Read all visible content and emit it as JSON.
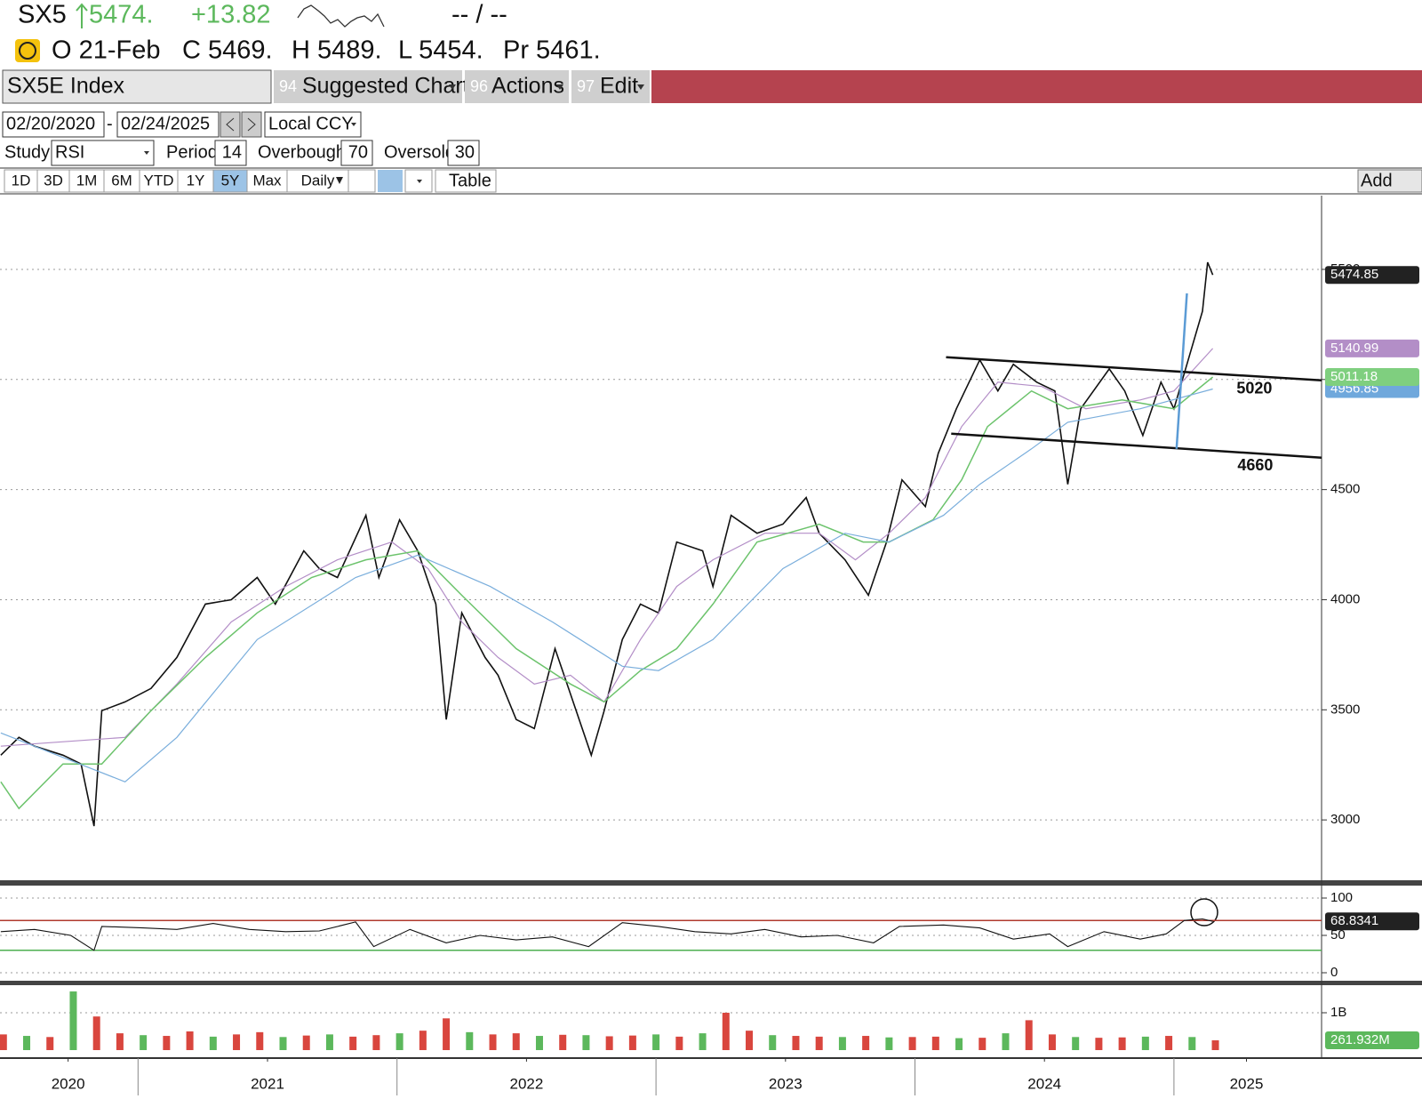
{
  "header": {
    "ticker": "SX5",
    "last": "5474.",
    "change": "+13.82",
    "updated": "-- / --",
    "open_date": "O 21-Feb",
    "close": "C 5469.",
    "high": "H 5489.",
    "low": "L 5454.",
    "prev": "Pr 5461."
  },
  "toolbar": {
    "security": "SX5E Index",
    "menus": [
      {
        "num": "94",
        "label": "Suggested Charts"
      },
      {
        "num": "96",
        "label": "Actions"
      },
      {
        "num": "97",
        "label": "Edit"
      }
    ]
  },
  "range": {
    "start": "02/20/2020",
    "separator": "-",
    "end": "02/24/2025",
    "currency": "Local CCY"
  },
  "study": {
    "label": "Study",
    "name": "RSI",
    "period_label": "Period",
    "period": 14,
    "overbought_label": "Overbought",
    "overbought": 70,
    "oversold_label": "Oversold",
    "oversold": 30
  },
  "periods": [
    "1D",
    "3D",
    "1M",
    "6M",
    "YTD",
    "1Y",
    "5Y",
    "Max",
    "Daily"
  ],
  "active_period": 6,
  "table": "Table",
  "add": "Add",
  "chart_data": [
    {
      "type": "line",
      "xlim": [
        2020.467,
        2025.57
      ],
      "ylim": [
        2726,
        5835
      ],
      "yticks": [
        3000,
        3500,
        4000,
        4500,
        5000,
        5500
      ],
      "grid": true,
      "series": [
        {
          "color": "#111111",
          "badge_color": "#222222",
          "width": 1.6,
          "x": [
            2020.47,
            2020.54,
            2020.6,
            2020.71,
            2020.78,
            2020.83,
            2020.86,
            2020.95,
            2021.05,
            2021.15,
            2021.26,
            2021.36,
            2021.46,
            2021.53,
            2021.64,
            2021.7,
            2021.77,
            2021.88,
            2021.93,
            2022.01,
            2022.08,
            2022.15,
            2022.19,
            2022.25,
            2022.34,
            2022.39,
            2022.46,
            2022.53,
            2022.61,
            2022.68,
            2022.75,
            2022.8,
            2022.87,
            2022.94,
            2023.01,
            2023.08,
            2023.18,
            2023.22,
            2023.29,
            2023.39,
            2023.49,
            2023.58,
            2023.63,
            2023.73,
            2023.82,
            2023.89,
            2023.95,
            2024.04,
            2024.09,
            2024.16,
            2024.25,
            2024.32,
            2024.38,
            2024.47,
            2024.54,
            2024.59,
            2024.64,
            2024.75,
            2024.81,
            2024.88,
            2024.95,
            2025.0,
            2025.06,
            2025.11,
            2025.13,
            2025.15
          ],
          "values": [
            3294,
            3375,
            3335,
            3294,
            3254,
            2972,
            3496,
            3536,
            3597,
            3738,
            3980,
            4000,
            4101,
            3980,
            4222,
            4141,
            4101,
            4383,
            4101,
            4363,
            4222,
            3980,
            3456,
            3940,
            3738,
            3657,
            3456,
            3415,
            3778,
            3536,
            3294,
            3496,
            3819,
            3980,
            3940,
            4262,
            4222,
            4060,
            4383,
            4302,
            4343,
            4464,
            4302,
            4181,
            4020,
            4262,
            4544,
            4423,
            4665,
            4867,
            5089,
            4948,
            5069,
            4988,
            4948,
            4524,
            4867,
            5048,
            4948,
            4746,
            4988,
            4867,
            5109,
            5310,
            5532,
            5474.85
          ]
        },
        {
          "color": "#b38ec7",
          "badge_color": "#b38ec7",
          "width": 1.2,
          "x": [
            2020.47,
            2020.95,
            2021.15,
            2021.36,
            2021.57,
            2021.77,
            2021.98,
            2022.12,
            2022.25,
            2022.39,
            2022.53,
            2022.67,
            2022.8,
            2022.94,
            2023.08,
            2023.22,
            2023.42,
            2023.63,
            2023.77,
            2023.9,
            2024.04,
            2024.18,
            2024.32,
            2024.49,
            2024.66,
            2024.87,
            2025.0,
            2025.15
          ],
          "values": [
            3335,
            3375,
            3617,
            3899,
            4060,
            4181,
            4262,
            4141,
            3899,
            3738,
            3617,
            3657,
            3536,
            3819,
            4060,
            4181,
            4302,
            4302,
            4181,
            4302,
            4464,
            4786,
            4988,
            4968,
            4867,
            4907,
            4948,
            5140.99
          ]
        },
        {
          "color": "#6cc36c",
          "badge_color": "#7fcf7f",
          "width": 1.5,
          "x": [
            2020.47,
            2020.54,
            2020.71,
            2020.86,
            2021.05,
            2021.26,
            2021.46,
            2021.67,
            2021.88,
            2022.08,
            2022.25,
            2022.46,
            2022.67,
            2022.8,
            2022.94,
            2023.08,
            2023.22,
            2023.39,
            2023.63,
            2023.8,
            2023.9,
            2024.07,
            2024.18,
            2024.28,
            2024.45,
            2024.59,
            2024.8,
            2025.0,
            2025.15
          ],
          "values": [
            3173,
            3052,
            3254,
            3254,
            3496,
            3738,
            3940,
            4101,
            4181,
            4222,
            4020,
            3778,
            3617,
            3536,
            3678,
            3778,
            3980,
            4262,
            4343,
            4262,
            4262,
            4363,
            4544,
            4786,
            4948,
            4867,
            4907,
            4867,
            5011.18
          ]
        },
        {
          "color": "#7aaedc",
          "badge_color": "#6fa8dc",
          "width": 1.2,
          "x": [
            2020.47,
            2020.95,
            2021.15,
            2021.46,
            2021.84,
            2022.08,
            2022.36,
            2022.6,
            2022.87,
            2023.01,
            2023.22,
            2023.49,
            2023.73,
            2023.9,
            2024.11,
            2024.25,
            2024.45,
            2024.59,
            2024.87,
            2025.15
          ],
          "values": [
            3395,
            3173,
            3375,
            3819,
            4101,
            4202,
            4060,
            3899,
            3698,
            3678,
            3819,
            4141,
            4302,
            4262,
            4383,
            4524,
            4685,
            4806,
            4867,
            4956.85
          ]
        }
      ],
      "lines": [
        {
          "x": [
            2024.12,
            2025.57
          ],
          "y": [
            5101,
            4996
          ],
          "color": "#111111",
          "label": "5020"
        },
        {
          "x": [
            2024.14,
            2025.57
          ],
          "y": [
            4754,
            4645
          ],
          "color": "#111111",
          "label": "4660"
        },
        {
          "x": [
            2025.01,
            2025.05
          ],
          "y": [
            4685,
            5391
          ],
          "color": "#5b9bd5"
        }
      ]
    },
    {
      "type": "line",
      "xlim": [
        2020.467,
        2025.57
      ],
      "ylim": [
        -10.7,
        114.3
      ],
      "yticks": [
        0,
        50,
        100
      ],
      "grid": true,
      "level_colors": [
        "#b03a2e",
        "#4caf50"
      ],
      "series": [
        {
          "color": "#111111",
          "badge_color": "#222222",
          "width": 1.1,
          "x": [
            2020.47,
            2020.6,
            2020.74,
            2020.83,
            2020.86,
            2021.02,
            2021.15,
            2021.29,
            2021.43,
            2021.57,
            2021.7,
            2021.84,
            2021.91,
            2022.05,
            2022.19,
            2022.32,
            2022.46,
            2022.6,
            2022.74,
            2022.87,
            2023.01,
            2023.15,
            2023.29,
            2023.42,
            2023.56,
            2023.7,
            2023.84,
            2023.94,
            2024.11,
            2024.25,
            2024.38,
            2024.52,
            2024.59,
            2024.73,
            2024.87,
            2024.97,
            2025.04,
            2025.11,
            2025.15
          ],
          "values": [
            55,
            58,
            50,
            30,
            62,
            60,
            58,
            66,
            58,
            55,
            56,
            68,
            35,
            58,
            40,
            50,
            44,
            48,
            35,
            67,
            62,
            55,
            52,
            58,
            48,
            50,
            40,
            62,
            64,
            60,
            45,
            52,
            35,
            55,
            45,
            52,
            70,
            72,
            68.8341
          ]
        }
      ]
    },
    {
      "type": "bar",
      "xlim": [
        2020.467,
        2025.57
      ],
      "ylim": [
        -214000000,
        1738000000
      ],
      "yticks": [
        {
          "value": 1000000000,
          "label": "1B"
        }
      ],
      "grid": true,
      "xticks": [
        {
          "value": 2020.73,
          "label": "2020"
        },
        {
          "value": 2021.5,
          "label": "2021"
        },
        {
          "value": 2022.5,
          "label": "2022"
        },
        {
          "value": 2023.5,
          "label": "2023"
        },
        {
          "value": 2024.5,
          "label": "2024"
        },
        {
          "value": 2025.28,
          "label": "2025"
        }
      ],
      "year_breaks": [
        2021,
        2022,
        2023,
        2024,
        2025
      ],
      "badge_color": "#5cb85c",
      "x": [
        2020.48,
        2020.57,
        2020.66,
        2020.75,
        2020.84,
        2020.93,
        2021.02,
        2021.11,
        2021.2,
        2021.29,
        2021.38,
        2021.47,
        2021.56,
        2021.65,
        2021.74,
        2021.83,
        2021.92,
        2022.01,
        2022.1,
        2022.19,
        2022.28,
        2022.37,
        2022.46,
        2022.55,
        2022.64,
        2022.73,
        2022.82,
        2022.91,
        2023.0,
        2023.09,
        2023.18,
        2023.27,
        2023.36,
        2023.45,
        2023.54,
        2023.63,
        2023.72,
        2023.81,
        2023.9,
        2023.99,
        2024.08,
        2024.17,
        2024.26,
        2024.35,
        2024.44,
        2024.53,
        2024.62,
        2024.71,
        2024.8,
        2024.89,
        2024.98,
        2025.07,
        2025.16
      ],
      "values": [
        420000000,
        380000000,
        350000000,
        1570000000,
        900000000,
        450000000,
        400000000,
        380000000,
        500000000,
        360000000,
        420000000,
        480000000,
        350000000,
        390000000,
        420000000,
        360000000,
        400000000,
        450000000,
        520000000,
        850000000,
        480000000,
        420000000,
        450000000,
        380000000,
        410000000,
        400000000,
        370000000,
        390000000,
        420000000,
        360000000,
        450000000,
        1000000000,
        520000000,
        400000000,
        380000000,
        360000000,
        350000000,
        380000000,
        340000000,
        350000000,
        360000000,
        320000000,
        330000000,
        450000000,
        800000000,
        420000000,
        350000000,
        330000000,
        340000000,
        360000000,
        380000000,
        350000000,
        261932000
      ],
      "value_labels": [
        null,
        null,
        null,
        null,
        null,
        null,
        null,
        null,
        null,
        null,
        null,
        null,
        null,
        null,
        null,
        null,
        null,
        null,
        null,
        null,
        null,
        null,
        null,
        null,
        null,
        null,
        null,
        null,
        null,
        null,
        null,
        null,
        null,
        null,
        null,
        null,
        null,
        null,
        null,
        null,
        null,
        null,
        null,
        null,
        null,
        null,
        null,
        null,
        null,
        null,
        null,
        null,
        "261.932M"
      ],
      "colors": [
        "#d9463e",
        "#5cb85c",
        "#d9463e",
        "#5cb85c",
        "#d9463e",
        "#d9463e",
        "#5cb85c",
        "#d9463e",
        "#d9463e",
        "#5cb85c",
        "#d9463e",
        "#d9463e",
        "#5cb85c",
        "#d9463e",
        "#5cb85c",
        "#d9463e",
        "#d9463e",
        "#5cb85c",
        "#d9463e",
        "#d9463e",
        "#5cb85c",
        "#d9463e",
        "#d9463e",
        "#5cb85c",
        "#d9463e",
        "#5cb85c",
        "#d9463e",
        "#d9463e",
        "#5cb85c",
        "#d9463e",
        "#5cb85c",
        "#d9463e",
        "#d9463e",
        "#5cb85c",
        "#d9463e",
        "#d9463e",
        "#5cb85c",
        "#d9463e",
        "#5cb85c",
        "#d9463e",
        "#d9463e",
        "#5cb85c",
        "#d9463e",
        "#5cb85c",
        "#d9463e",
        "#d9463e",
        "#5cb85c",
        "#d9463e",
        "#d9463e",
        "#5cb85c",
        "#d9463e",
        "#5cb85c",
        "#d9463e"
      ]
    }
  ]
}
